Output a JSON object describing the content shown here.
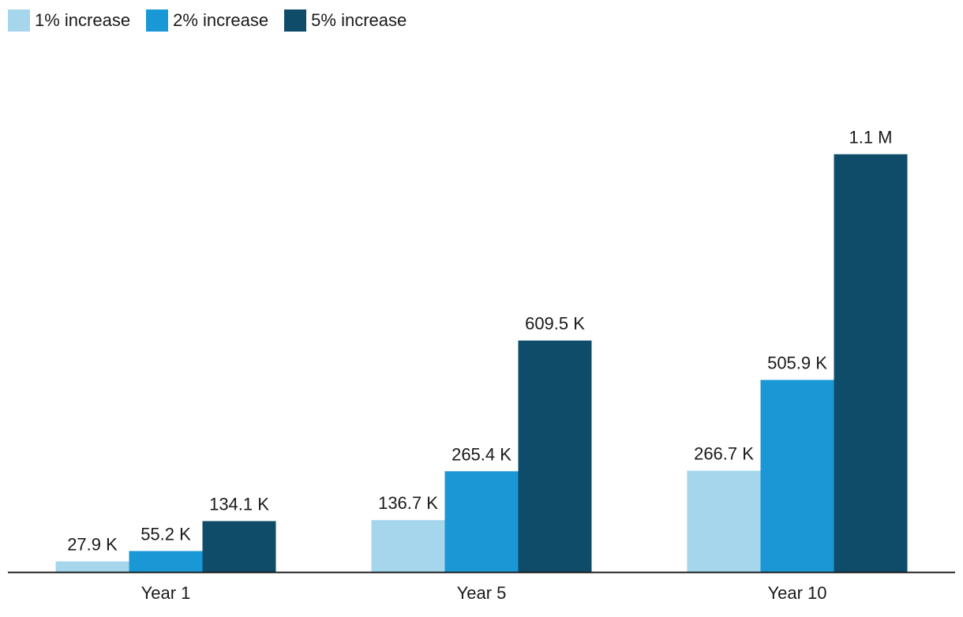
{
  "chart_data": {
    "type": "bar",
    "title": "",
    "xlabel": "",
    "ylabel": "",
    "categories": [
      "Year 1",
      "Year 5",
      "Year 10"
    ],
    "series": [
      {
        "name": "1% increase",
        "color": "#a6d6ec",
        "values": [
          27900,
          136700,
          266700
        ],
        "labels": [
          "27.9 K",
          "136.7 K",
          "266.7 K"
        ]
      },
      {
        "name": "2% increase",
        "color": "#1a98d5",
        "values": [
          55200,
          265400,
          505900
        ],
        "labels": [
          "55.2 K",
          "265.4 K",
          "505.9 K"
        ]
      },
      {
        "name": "5% increase",
        "color": "#0e4c6a",
        "values": [
          134100,
          609500,
          1100000
        ],
        "labels": [
          "134.1 K",
          "609.5 K",
          "1.1 M"
        ]
      }
    ],
    "ylim": [
      0,
      1340000
    ],
    "grid": false,
    "legend_position": "top-left",
    "baseline_color": "#1a1a1a"
  }
}
